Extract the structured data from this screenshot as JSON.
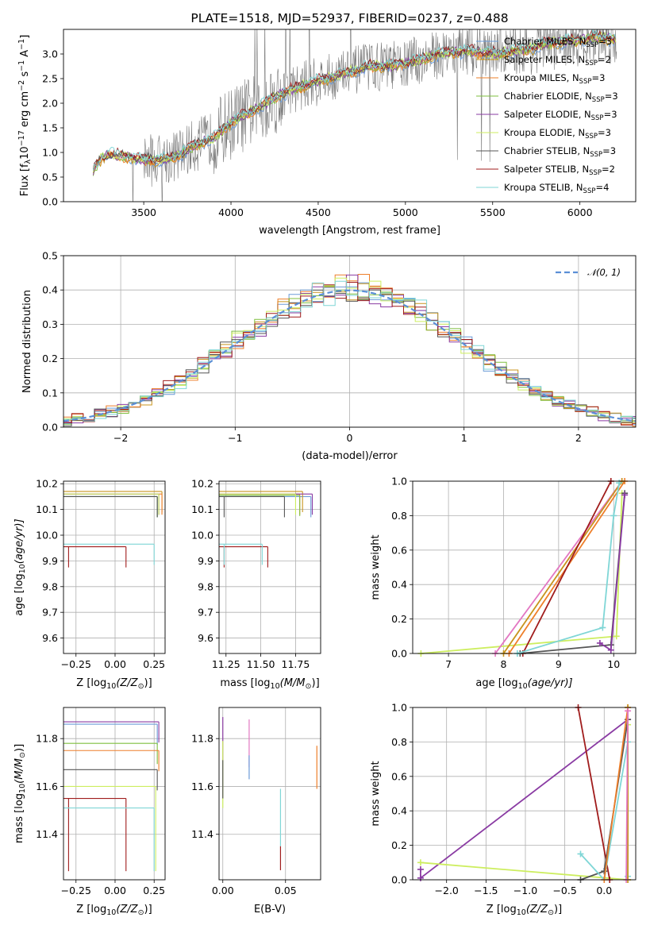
{
  "colors": {
    "Chabrier MILES": "#6b9bd8",
    "Salpeter MILES": "#c8941e",
    "Kroupa MILES": "#ee7f2a",
    "Chabrier ELODIE": "#7fbf3f",
    "Salpeter ELODIE": "#8a3ba3",
    "Kroupa ELODIE": "#cdee5f",
    "Chabrier STELIB": "#555555",
    "Salpeter STELIB": "#a01c1c",
    "Kroupa STELIB": "#7fd6d6",
    "noise": "#7a7a7a",
    "extra": "#e377c2",
    "normal": "#5b8fd6"
  },
  "chart_data": [
    {
      "id": "spectrum",
      "type": "line",
      "title": "PLATE=1518, MJD=52937, FIBERID=0237, z=0.488",
      "xlabel": "wavelength [Angstrom, rest frame]",
      "ylabel": "Flux [f",
      "ylabel_sub": "λ",
      "ylabel_mid": "10",
      "ylabel_sup1": "−17",
      "ylabel_tail": " erg cm",
      "ylabel_sup2": "−2",
      "ylabel_s": " s",
      "ylabel_sup3": "−1",
      "ylabel_a": " A",
      "ylabel_sup4": "−1",
      "ylabel_end": "]",
      "xlim": [
        3040,
        6320
      ],
      "ylim": [
        0,
        3.5
      ],
      "xticks": [
        "3500",
        "4000",
        "4500",
        "5000",
        "5500",
        "6000"
      ],
      "yticks": [
        "0.0",
        "0.5",
        "1.0",
        "1.5",
        "2.0",
        "2.5",
        "3.0"
      ],
      "continuum_x": [
        3210,
        3260,
        3300,
        3400,
        3500,
        3600,
        3700,
        3800,
        3900,
        4000,
        4100,
        4200,
        4300,
        4400,
        4500,
        4600,
        4700,
        4800,
        4900,
        5000,
        5100,
        5200,
        5300,
        5400,
        5500,
        5600,
        5700,
        5800,
        5900,
        6000,
        6100,
        6200
      ],
      "continuum_y": [
        0.65,
        0.9,
        0.95,
        0.92,
        0.85,
        0.85,
        0.95,
        1.15,
        1.3,
        1.6,
        1.8,
        2.0,
        2.2,
        2.35,
        2.45,
        2.55,
        2.65,
        2.75,
        2.75,
        2.8,
        2.9,
        3.0,
        3.05,
        3.05,
        3.0,
        3.05,
        3.1,
        3.2,
        3.25,
        3.3,
        3.35,
        3.3
      ],
      "legend": [
        {
          "base": "Chabrier MILES, N",
          "sub": "SSP",
          "tail": "=3"
        },
        {
          "base": "Salpeter MILES, N",
          "sub": "SSP",
          "tail": "=2"
        },
        {
          "base": "Kroupa MILES, N",
          "sub": "SSP",
          "tail": "=3"
        },
        {
          "base": "Chabrier ELODIE, N",
          "sub": "SSP",
          "tail": "=3"
        },
        {
          "base": "Salpeter ELODIE, N",
          "sub": "SSP",
          "tail": "=3"
        },
        {
          "base": "Kroupa ELODIE, N",
          "sub": "SSP",
          "tail": "=3"
        },
        {
          "base": "Chabrier STELIB, N",
          "sub": "SSP",
          "tail": "=3"
        },
        {
          "base": "Salpeter STELIB, N",
          "sub": "SSP",
          "tail": "=2"
        },
        {
          "base": "Kroupa STELIB, N",
          "sub": "SSP",
          "tail": "=4"
        }
      ],
      "legend_placement": "upper-right"
    },
    {
      "id": "residuals",
      "type": "step-histogram",
      "xlabel": "(data-model)/error",
      "ylabel": "Normed distribution",
      "xlim": [
        -2.5,
        2.5
      ],
      "ylim": [
        0,
        0.5
      ],
      "xticks": [
        "−2",
        "−1",
        "0",
        "1",
        "2"
      ],
      "yticks": [
        "0.0",
        "0.1",
        "0.2",
        "0.3",
        "0.4",
        "0.5"
      ],
      "grid": true,
      "legend": "𝒩(0, 1)",
      "legend_placement": "upper-right"
    },
    {
      "id": "age-Z",
      "type": "errorbar",
      "xlabel": "Z [log",
      "xlabel_sub": "10",
      "xlabel_tail": "(Z/Z",
      "xlabel_sun": "⊙",
      "xlabel_end": ")]",
      "ylabel": "age  [log",
      "ylabel_sub": "10",
      "ylabel_tail": "(age/yr)]",
      "xlim": [
        -0.33,
        0.32
      ],
      "ylim": [
        9.54,
        10.21
      ],
      "xticks": [
        "−0.25",
        "0.00",
        "0.25"
      ],
      "yticks": [
        "9.6",
        "9.7",
        "9.8",
        "9.9",
        "10.0",
        "10.1",
        "10.2"
      ],
      "points": [
        {
          "m": "Chabrier MILES",
          "x": 0.27,
          "y": 10.15
        },
        {
          "m": "Salpeter MILES",
          "x": 0.3,
          "y": 10.17
        },
        {
          "m": "Kroupa MILES",
          "x": 0.3,
          "y": 10.16
        },
        {
          "m": "Chabrier ELODIE",
          "x": 0.27,
          "y": 10.15
        },
        {
          "m": "Salpeter ELODIE",
          "x": 0.28,
          "y": 10.16
        },
        {
          "m": "Kroupa ELODIE",
          "x": 0.28,
          "y": 10.16
        },
        {
          "m": "Chabrier STELIB",
          "x": 0.27,
          "y": 10.15
        },
        {
          "m": "Salpeter STELIB",
          "x": 0.07,
          "y": 9.955
        },
        {
          "m": "Kroupa STELIB",
          "x": 0.25,
          "y": 9.965
        }
      ]
    },
    {
      "id": "age-mass",
      "type": "errorbar",
      "xlabel": "mass [log",
      "xlabel_sub": "10",
      "xlabel_tail": "(M/M",
      "xlabel_sun": "⊙",
      "xlabel_end": ")]",
      "xlim": [
        11.2,
        11.93
      ],
      "ylim": [
        9.54,
        10.21
      ],
      "xticks": [
        "11.25",
        "11.50",
        "11.75"
      ],
      "yticks": [
        "9.6",
        "9.7",
        "9.8",
        "9.9",
        "10.0",
        "10.1",
        "10.2"
      ],
      "points": [
        {
          "m": "Chabrier MILES",
          "x": 11.86,
          "y": 10.15
        },
        {
          "m": "Salpeter MILES",
          "x": 11.8,
          "y": 10.17
        },
        {
          "m": "Kroupa MILES",
          "x": 11.78,
          "y": 10.16
        },
        {
          "m": "Chabrier ELODIE",
          "x": 11.78,
          "y": 10.155
        },
        {
          "m": "Salpeter ELODIE",
          "x": 11.87,
          "y": 10.16
        },
        {
          "m": "Kroupa ELODIE",
          "x": 11.75,
          "y": 10.16
        },
        {
          "m": "Chabrier STELIB",
          "x": 11.67,
          "y": 10.15
        },
        {
          "m": "Salpeter STELIB",
          "x": 11.55,
          "y": 9.955
        },
        {
          "m": "Kroupa STELIB",
          "x": 11.51,
          "y": 9.965
        }
      ]
    },
    {
      "id": "mw-age",
      "type": "line",
      "xlabel": "age  [log",
      "xlabel_sub": "10",
      "xlabel_tail": "(age/yr)]",
      "ylabel": "mass weight",
      "xlim": [
        6.35,
        10.4
      ],
      "ylim": [
        0,
        1
      ],
      "xticks": [
        "7",
        "8",
        "9",
        "10"
      ],
      "yticks": [
        "0.0",
        "0.2",
        "0.4",
        "0.6",
        "0.8",
        "1.0"
      ],
      "grid": true,
      "series": [
        {
          "m": "Kroupa ELODIE",
          "x": [
            6.5,
            10.05,
            10.15
          ],
          "y": [
            0.0,
            0.1,
            0.93
          ]
        },
        {
          "m": "extra",
          "x": [
            7.85,
            10.15
          ],
          "y": [
            0.0,
            1.0
          ]
        },
        {
          "m": "Kroupa MILES",
          "x": [
            8.1,
            10.2
          ],
          "y": [
            0.0,
            1.0
          ]
        },
        {
          "m": "Salpeter MILES",
          "x": [
            8.0,
            10.15
          ],
          "y": [
            0.0,
            1.0
          ]
        },
        {
          "m": "Salpeter STELIB",
          "x": [
            8.35,
            9.95
          ],
          "y": [
            0.0,
            1.0
          ]
        },
        {
          "m": "Chabrier STELIB",
          "x": [
            8.3,
            9.95,
            10.2
          ],
          "y": [
            0.0,
            0.05,
            0.93
          ]
        },
        {
          "m": "Kroupa STELIB",
          "x": [
            8.25,
            9.8,
            10.0,
            10.1
          ],
          "y": [
            0.0,
            0.15,
            0.8,
            0.99
          ]
        },
        {
          "m": "Salpeter ELODIE",
          "x": [
            9.75,
            9.95,
            10.2
          ],
          "y": [
            0.06,
            0.02,
            0.92
          ]
        }
      ]
    },
    {
      "id": "mass-Z",
      "type": "errorbar",
      "xlabel": "Z [log",
      "xlabel_sub": "10",
      "xlabel_tail": "(Z/Z",
      "xlabel_sun": "⊙",
      "xlabel_end": ")]",
      "ylabel": "mass [log",
      "ylabel_sub": "10",
      "ylabel_tail": "(M/M",
      "ylabel_sun": "⊙",
      "ylabel_end": ")]",
      "xlim": [
        -0.33,
        0.32
      ],
      "ylim": [
        11.21,
        11.93
      ],
      "xticks": [
        "−0.25",
        "0.00",
        "0.25"
      ],
      "yticks": [
        "11.4",
        "11.6",
        "11.8"
      ],
      "points": [
        {
          "m": "Salpeter ELODIE",
          "x": 0.28,
          "y": 11.87
        },
        {
          "m": "Chabrier MILES",
          "x": 0.27,
          "y": 11.86
        },
        {
          "m": "Chabrier ELODIE",
          "x": 0.27,
          "y": 11.78
        },
        {
          "m": "Kroupa MILES",
          "x": 0.28,
          "y": 11.75
        },
        {
          "m": "Chabrier STELIB",
          "x": 0.27,
          "y": 11.67
        },
        {
          "m": "Kroupa ELODIE",
          "x": 0.26,
          "y": 11.6
        },
        {
          "m": "Salpeter STELIB",
          "x": 0.07,
          "y": 11.55
        },
        {
          "m": "Kroupa STELIB",
          "x": 0.25,
          "y": 11.51
        }
      ]
    },
    {
      "id": "mass-ebv",
      "type": "errorbar",
      "xlabel": "E(B-V)",
      "xlim": [
        -0.003,
        0.078
      ],
      "ylim": [
        11.21,
        11.93
      ],
      "xticks": [
        "0.00",
        "0.05"
      ],
      "yticks": [
        "11.4",
        "11.6",
        "11.8"
      ],
      "points": [
        {
          "m": "Salpeter ELODIE",
          "x": 0.0,
          "y": 11.8,
          "yerr": 0.09
        },
        {
          "m": "Kroupa ELODIE",
          "x": 0.0,
          "y": 11.65,
          "yerr": 0.14
        },
        {
          "m": "Chabrier STELIB",
          "x": 0.0,
          "y": 11.63,
          "yerr": 0.08
        },
        {
          "m": "extra",
          "x": 0.021,
          "y": 11.78,
          "yerr": 0.1
        },
        {
          "m": "Chabrier MILES",
          "x": 0.021,
          "y": 11.68,
          "yerr": 0.05
        },
        {
          "m": "Kroupa STELIB",
          "x": 0.046,
          "y": 11.47,
          "yerr": 0.12
        },
        {
          "m": "Salpeter STELIB",
          "x": 0.046,
          "y": 11.3,
          "yerr": 0.05
        },
        {
          "m": "Kroupa MILES",
          "x": 0.075,
          "y": 11.68,
          "yerr": 0.09
        }
      ]
    },
    {
      "id": "mw-Z",
      "type": "line",
      "xlabel": "Z [log",
      "xlabel_sub": "10",
      "xlabel_tail": "(Z/Z",
      "xlabel_sun": "⊙",
      "xlabel_end": ")]",
      "ylabel": "mass weight",
      "xlim": [
        -2.43,
        0.4
      ],
      "ylim": [
        0,
        1
      ],
      "xticks": [
        "−2.0",
        "−1.5",
        "−1.0",
        "−0.5",
        "0.0"
      ],
      "yticks": [
        "0.0",
        "0.2",
        "0.4",
        "0.6",
        "0.8",
        "1.0"
      ],
      "grid": true,
      "series": [
        {
          "m": "Salpeter ELODIE",
          "x": [
            -2.33,
            -2.33,
            0.3
          ],
          "y": [
            0.06,
            0.01,
            0.93
          ]
        },
        {
          "m": "Kroupa ELODIE",
          "x": [
            -2.33,
            0.3,
            0.3
          ],
          "y": [
            0.1,
            0.0,
            0.9
          ]
        },
        {
          "m": "Salpeter STELIB",
          "x": [
            -0.33,
            0.07
          ],
          "y": [
            1.0,
            0.0
          ]
        },
        {
          "m": "Chabrier STELIB",
          "x": [
            -0.3,
            0.0,
            0.3
          ],
          "y": [
            0.0,
            0.05,
            0.93
          ]
        },
        {
          "m": "Kroupa STELIB",
          "x": [
            -0.3,
            0.0,
            0.3,
            0.3
          ],
          "y": [
            0.15,
            0.0,
            0.8,
            0.02
          ]
        },
        {
          "m": "Kroupa MILES",
          "x": [
            0.0,
            0.3
          ],
          "y": [
            0.0,
            1.0
          ]
        },
        {
          "m": "Salpeter MILES",
          "x": [
            0.3,
            0.3
          ],
          "y": [
            0.0,
            1.0
          ]
        },
        {
          "m": "extra",
          "x": [
            0.28,
            0.3
          ],
          "y": [
            0.0,
            0.98
          ]
        }
      ]
    }
  ]
}
